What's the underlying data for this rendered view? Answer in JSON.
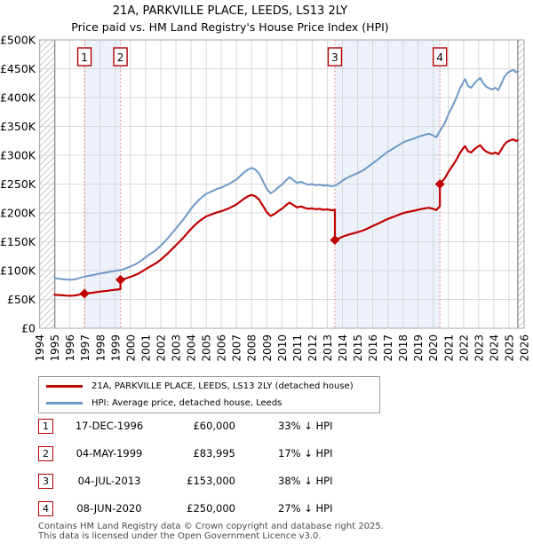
{
  "title": {
    "line1": "21A, PARKVILLE PLACE, LEEDS, LS13 2LY",
    "line2": "Price paid vs. HM Land Registry's House Price Index (HPI)"
  },
  "legend": [
    {
      "label": "21A, PARKVILLE PLACE, LEEDS, LS13 2LY (detached house)",
      "color": "#c00000"
    },
    {
      "label": "HPI: Average price, detached house, Leeds",
      "color": "#6d99c8"
    }
  ],
  "transactions": [
    {
      "num": "1",
      "date": "17-DEC-1996",
      "price": "£60,000",
      "vs_hpi": "33% ↓ HPI",
      "year": 1996.96,
      "price_k": 60
    },
    {
      "num": "2",
      "date": "04-MAY-1999",
      "price": "£83,995",
      "vs_hpi": "17% ↓ HPI",
      "year": 1999.34,
      "price_k": 84
    },
    {
      "num": "3",
      "date": "04-JUL-2013",
      "price": "£153,000",
      "vs_hpi": "38% ↓ HPI",
      "year": 2013.5,
      "price_k": 153
    },
    {
      "num": "4",
      "date": "08-JUN-2020",
      "price": "£250,000",
      "vs_hpi": "27% ↓ HPI",
      "year": 2020.44,
      "price_k": 250
    }
  ],
  "footer": {
    "line1": "Contains HM Land Registry data © Crown copyright and database right 2025.",
    "line2": "This data is licensed under the Open Government Licence v3.0."
  },
  "chart_data": {
    "type": "line",
    "title": "21A, PARKVILLE PLACE, LEEDS, LS13 2LY",
    "subtitle": "Price paid vs. HM Land Registry's House Price Index (HPI)",
    "x_axis": {
      "min": 1994,
      "max": 2026,
      "ticks": [
        1994,
        1995,
        1996,
        1997,
        1998,
        1999,
        2000,
        2001,
        2002,
        2003,
        2004,
        2005,
        2006,
        2007,
        2008,
        2009,
        2010,
        2011,
        2012,
        2013,
        2014,
        2015,
        2016,
        2017,
        2018,
        2019,
        2020,
        2021,
        2022,
        2023,
        2024,
        2025,
        2026
      ]
    },
    "y_axis": {
      "min": 0,
      "max": 500000,
      "tick_step_k": 50,
      "tick_labels": [
        "£0",
        "£50K",
        "£100K",
        "£150K",
        "£200K",
        "£250K",
        "£300K",
        "£350K",
        "£400K",
        "£450K",
        "£500K"
      ]
    },
    "data_start_year": 1995.0,
    "data_end_year": 2025.58,
    "shaded_bands": [
      [
        1996.96,
        1999.34
      ],
      [
        2013.5,
        2020.44
      ]
    ],
    "colors": {
      "property": "#c00000",
      "hpi": "#6d99c8",
      "event_line": "#ee8080",
      "band": "#ecf1fa",
      "grid": "#d8d8d8",
      "border": "#a8a8a8",
      "hatch": "#c6c6c6",
      "edge_line": "#8a8a8a",
      "marker_box_border": "#b30000"
    },
    "series": [
      {
        "name": "HPI: Average price, detached house, Leeds",
        "color": "#6d99c8",
        "unit": "£K",
        "points": [
          [
            1995.0,
            87
          ],
          [
            1995.25,
            86
          ],
          [
            1995.5,
            85
          ],
          [
            1995.75,
            84.5
          ],
          [
            1996.0,
            84
          ],
          [
            1996.25,
            84.5
          ],
          [
            1996.5,
            86
          ],
          [
            1996.75,
            88
          ],
          [
            1996.96,
            89.5
          ],
          [
            1997.25,
            91
          ],
          [
            1997.5,
            92
          ],
          [
            1997.75,
            93.5
          ],
          [
            1998.0,
            95
          ],
          [
            1998.25,
            96
          ],
          [
            1998.5,
            97
          ],
          [
            1998.75,
            98.5
          ],
          [
            1999.0,
            99.5
          ],
          [
            1999.34,
            101
          ],
          [
            1999.5,
            102
          ],
          [
            1999.75,
            104.5
          ],
          [
            2000.0,
            107
          ],
          [
            2000.25,
            110
          ],
          [
            2000.5,
            113.5
          ],
          [
            2000.75,
            118
          ],
          [
            2001.0,
            123
          ],
          [
            2001.25,
            128
          ],
          [
            2001.5,
            132
          ],
          [
            2001.75,
            137
          ],
          [
            2002.0,
            143
          ],
          [
            2002.25,
            150
          ],
          [
            2002.5,
            157
          ],
          [
            2002.75,
            165
          ],
          [
            2003.0,
            173
          ],
          [
            2003.25,
            181
          ],
          [
            2003.5,
            189
          ],
          [
            2003.75,
            198
          ],
          [
            2004.0,
            207
          ],
          [
            2004.25,
            215
          ],
          [
            2004.5,
            222
          ],
          [
            2004.75,
            228
          ],
          [
            2005.0,
            233
          ],
          [
            2005.25,
            236
          ],
          [
            2005.5,
            239
          ],
          [
            2005.75,
            242
          ],
          [
            2006.0,
            244
          ],
          [
            2006.25,
            247
          ],
          [
            2006.5,
            250
          ],
          [
            2006.75,
            254
          ],
          [
            2007.0,
            258
          ],
          [
            2007.25,
            264
          ],
          [
            2007.5,
            270
          ],
          [
            2007.75,
            275
          ],
          [
            2008.0,
            278
          ],
          [
            2008.25,
            275
          ],
          [
            2008.5,
            268
          ],
          [
            2008.75,
            255
          ],
          [
            2009.0,
            242
          ],
          [
            2009.25,
            234
          ],
          [
            2009.5,
            238
          ],
          [
            2009.75,
            244
          ],
          [
            2010.0,
            249
          ],
          [
            2010.25,
            256
          ],
          [
            2010.5,
            262
          ],
          [
            2010.75,
            257
          ],
          [
            2011.0,
            252
          ],
          [
            2011.25,
            254
          ],
          [
            2011.5,
            251
          ],
          [
            2011.75,
            249
          ],
          [
            2012.0,
            250
          ],
          [
            2012.25,
            248
          ],
          [
            2012.5,
            249
          ],
          [
            2012.75,
            247
          ],
          [
            2013.0,
            248
          ],
          [
            2013.25,
            246
          ],
          [
            2013.5,
            247
          ],
          [
            2013.75,
            251
          ],
          [
            2014.0,
            256
          ],
          [
            2014.25,
            260
          ],
          [
            2014.5,
            263
          ],
          [
            2014.75,
            266
          ],
          [
            2015.0,
            269
          ],
          [
            2015.25,
            272
          ],
          [
            2015.5,
            276
          ],
          [
            2015.75,
            281
          ],
          [
            2016.0,
            286
          ],
          [
            2016.25,
            291
          ],
          [
            2016.5,
            296
          ],
          [
            2016.75,
            301
          ],
          [
            2017.0,
            306
          ],
          [
            2017.25,
            310
          ],
          [
            2017.5,
            314
          ],
          [
            2017.75,
            318
          ],
          [
            2018.0,
            322
          ],
          [
            2018.25,
            325
          ],
          [
            2018.5,
            327
          ],
          [
            2018.75,
            329
          ],
          [
            2019.0,
            332
          ],
          [
            2019.25,
            334
          ],
          [
            2019.5,
            336
          ],
          [
            2019.75,
            337
          ],
          [
            2020.0,
            334
          ],
          [
            2020.2,
            331
          ],
          [
            2020.44,
            342
          ],
          [
            2020.6,
            349
          ],
          [
            2020.75,
            355
          ],
          [
            2021.0,
            371
          ],
          [
            2021.25,
            384
          ],
          [
            2021.5,
            398
          ],
          [
            2021.75,
            415
          ],
          [
            2022.0,
            428
          ],
          [
            2022.1,
            432
          ],
          [
            2022.3,
            420
          ],
          [
            2022.5,
            417
          ],
          [
            2022.7,
            424
          ],
          [
            2022.9,
            430
          ],
          [
            2023.1,
            434
          ],
          [
            2023.3,
            425
          ],
          [
            2023.5,
            419
          ],
          [
            2023.7,
            416
          ],
          [
            2023.9,
            414
          ],
          [
            2024.1,
            417
          ],
          [
            2024.3,
            413
          ],
          [
            2024.5,
            424
          ],
          [
            2024.7,
            436
          ],
          [
            2024.9,
            443
          ],
          [
            2025.1,
            446
          ],
          [
            2025.3,
            448
          ],
          [
            2025.45,
            444
          ],
          [
            2025.58,
            446
          ]
        ]
      },
      {
        "name": "21A, PARKVILLE PLACE, LEEDS, LS13 2LY (detached house)",
        "color": "#c00000",
        "unit": "£K",
        "points": [
          [
            1995.0,
            58.3
          ],
          [
            1995.25,
            57.6
          ],
          [
            1995.5,
            57
          ],
          [
            1995.75,
            56.6
          ],
          [
            1996.0,
            56.3
          ],
          [
            1996.25,
            56.6
          ],
          [
            1996.5,
            57.6
          ],
          [
            1996.75,
            59
          ],
          [
            1996.96,
            60
          ],
          [
            1997.25,
            61
          ],
          [
            1997.5,
            61.6
          ],
          [
            1997.75,
            62.6
          ],
          [
            1998.0,
            63.6
          ],
          [
            1998.25,
            64.3
          ],
          [
            1998.5,
            65
          ],
          [
            1998.75,
            66
          ],
          [
            1999.0,
            66.7
          ],
          [
            1999.34,
            67.7
          ],
          [
            1999.34,
            84
          ],
          [
            1999.5,
            84.8
          ],
          [
            1999.75,
            86.9
          ],
          [
            2000.0,
            89
          ],
          [
            2000.25,
            91.5
          ],
          [
            2000.5,
            94.4
          ],
          [
            2000.75,
            98.1
          ],
          [
            2001.0,
            102.3
          ],
          [
            2001.25,
            106.5
          ],
          [
            2001.5,
            109.8
          ],
          [
            2001.75,
            113.9
          ],
          [
            2002.0,
            118.9
          ],
          [
            2002.25,
            124.8
          ],
          [
            2002.5,
            130.6
          ],
          [
            2002.75,
            137.2
          ],
          [
            2003.0,
            143.9
          ],
          [
            2003.25,
            150.5
          ],
          [
            2003.5,
            157.2
          ],
          [
            2003.75,
            164.7
          ],
          [
            2004.0,
            172.2
          ],
          [
            2004.25,
            178.8
          ],
          [
            2004.5,
            184.6
          ],
          [
            2004.75,
            189.6
          ],
          [
            2005.0,
            193.8
          ],
          [
            2005.25,
            196.3
          ],
          [
            2005.5,
            198.8
          ],
          [
            2005.75,
            201.3
          ],
          [
            2006.0,
            202.9
          ],
          [
            2006.25,
            205.4
          ],
          [
            2006.5,
            207.9
          ],
          [
            2006.75,
            211.3
          ],
          [
            2007.0,
            214.6
          ],
          [
            2007.25,
            219.6
          ],
          [
            2007.5,
            224.6
          ],
          [
            2007.75,
            228.7
          ],
          [
            2008.0,
            231.2
          ],
          [
            2008.25,
            228.7
          ],
          [
            2008.5,
            222.9
          ],
          [
            2008.75,
            212.1
          ],
          [
            2009.0,
            201.3
          ],
          [
            2009.25,
            194.6
          ],
          [
            2009.5,
            197.9
          ],
          [
            2009.75,
            202.9
          ],
          [
            2010.0,
            207.1
          ],
          [
            2010.25,
            212.9
          ],
          [
            2010.5,
            217.9
          ],
          [
            2010.75,
            213.7
          ],
          [
            2011.0,
            209.6
          ],
          [
            2011.25,
            211.3
          ],
          [
            2011.5,
            208.8
          ],
          [
            2011.75,
            207.1
          ],
          [
            2012.0,
            207.9
          ],
          [
            2012.25,
            206.3
          ],
          [
            2012.5,
            207.1
          ],
          [
            2012.75,
            205.4
          ],
          [
            2013.0,
            206.3
          ],
          [
            2013.25,
            204.6
          ],
          [
            2013.5,
            205.4
          ],
          [
            2013.5,
            153
          ],
          [
            2013.75,
            155.5
          ],
          [
            2014.0,
            158.6
          ],
          [
            2014.25,
            161
          ],
          [
            2014.5,
            162.9
          ],
          [
            2014.75,
            164.8
          ],
          [
            2015.0,
            166.6
          ],
          [
            2015.25,
            168.5
          ],
          [
            2015.5,
            171
          ],
          [
            2015.75,
            174
          ],
          [
            2016.0,
            177.2
          ],
          [
            2016.25,
            180.2
          ],
          [
            2016.5,
            183.3
          ],
          [
            2016.75,
            186.4
          ],
          [
            2017.0,
            189.5
          ],
          [
            2017.25,
            192
          ],
          [
            2017.5,
            194.5
          ],
          [
            2017.75,
            197
          ],
          [
            2018.0,
            199.5
          ],
          [
            2018.25,
            201.3
          ],
          [
            2018.5,
            202.6
          ],
          [
            2018.75,
            203.8
          ],
          [
            2019.0,
            205.6
          ],
          [
            2019.25,
            206.9
          ],
          [
            2019.5,
            208.1
          ],
          [
            2019.75,
            208.7
          ],
          [
            2020.0,
            206.9
          ],
          [
            2020.2,
            205
          ],
          [
            2020.44,
            211.8
          ],
          [
            2020.44,
            250
          ],
          [
            2020.6,
            255.1
          ],
          [
            2020.75,
            259.5
          ],
          [
            2021.0,
            271.2
          ],
          [
            2021.25,
            280.7
          ],
          [
            2021.5,
            291
          ],
          [
            2021.75,
            303.4
          ],
          [
            2022.0,
            312.9
          ],
          [
            2022.1,
            315.8
          ],
          [
            2022.3,
            307
          ],
          [
            2022.5,
            304.8
          ],
          [
            2022.7,
            310
          ],
          [
            2022.9,
            314.3
          ],
          [
            2023.1,
            317.3
          ],
          [
            2023.3,
            310.7
          ],
          [
            2023.5,
            306.3
          ],
          [
            2023.7,
            304.1
          ],
          [
            2023.9,
            302.6
          ],
          [
            2024.1,
            304.8
          ],
          [
            2024.3,
            301.9
          ],
          [
            2024.5,
            310
          ],
          [
            2024.7,
            318.7
          ],
          [
            2024.9,
            323.8
          ],
          [
            2025.1,
            326
          ],
          [
            2025.3,
            327.5
          ],
          [
            2025.45,
            324.6
          ],
          [
            2025.58,
            326
          ]
        ]
      }
    ],
    "events": [
      {
        "num": "1",
        "year": 1996.96,
        "value_k": 60,
        "label": "17-DEC-1996 £60,000"
      },
      {
        "num": "2",
        "year": 1999.34,
        "value_k": 84,
        "label": "04-MAY-1999 £83,995"
      },
      {
        "num": "3",
        "year": 2013.5,
        "value_k": 153,
        "label": "04-JUL-2013 £153,000"
      },
      {
        "num": "4",
        "year": 2020.44,
        "value_k": 250,
        "label": "08-JUN-2020 £250,000"
      }
    ],
    "legend_position": "bottom",
    "grid": true
  }
}
